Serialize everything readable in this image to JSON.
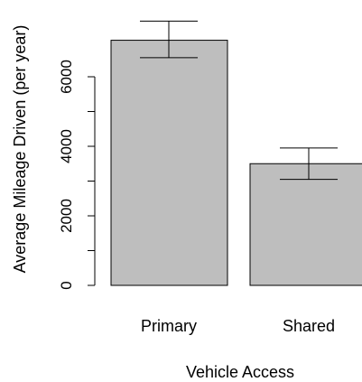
{
  "chart_data": {
    "type": "bar",
    "title": "",
    "xlabel": "Vehicle Access",
    "ylabel": "Average Mileage Driven (per year)",
    "categories": [
      "Primary",
      "Shared"
    ],
    "values": [
      7050,
      3500
    ],
    "error_bars": [
      {
        "low": 6550,
        "high": 7600
      },
      {
        "low": 3050,
        "high": 3950
      }
    ],
    "y_ticks": [
      0,
      2000,
      4000,
      6000
    ],
    "ylim": [
      0,
      7600
    ],
    "grid": false,
    "legend": "none"
  },
  "colors": {
    "bar_fill": "#bebebe",
    "bar_stroke": "#000000",
    "axis": "#000000",
    "background": "#ffffff"
  }
}
